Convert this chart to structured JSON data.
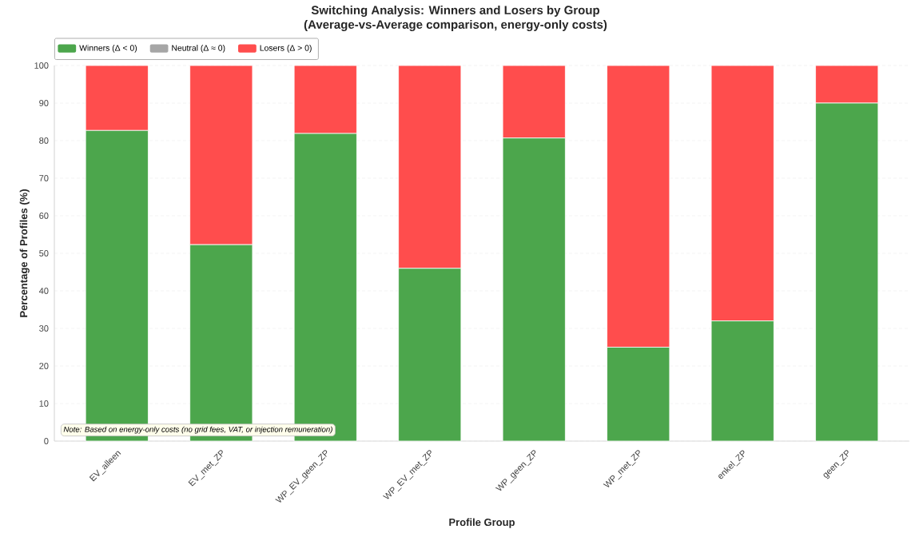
{
  "chart_data": {
    "type": "bar",
    "title": "Switching Analysis: Winners and Losers by Group",
    "subtitle": "(Average-vs-Average comparison, energy-only costs)",
    "xlabel": "Profile Group",
    "ylabel": "Percentage of Profiles (%)",
    "categories": [
      "EV_alleen",
      "EV_met_ZP",
      "WP_EV_geen_ZP",
      "WP_EV_met_ZP",
      "WP_geen_ZP",
      "WP_met_ZP",
      "enkel_ZP",
      "geen_ZP"
    ],
    "stacked": true,
    "series": [
      {
        "name": "Winners (Δ < 0)",
        "color": "#4ca64c",
        "values": [
          82.7,
          52.3,
          81.9,
          46,
          80.7,
          25,
          32,
          90
        ]
      },
      {
        "name": "Neutral (Δ ≈ 0)",
        "color": "#a6a6a6",
        "values": [
          0,
          0,
          0,
          0,
          0,
          0,
          0,
          0
        ]
      },
      {
        "name": "Losers (Δ > 0)",
        "color": "#ff4d4d",
        "values": [
          17.3,
          47.7,
          18.1,
          54,
          19.3,
          75,
          68,
          10
        ]
      }
    ],
    "ylim": [
      0,
      100
    ],
    "yticks": [
      0,
      10,
      20,
      30,
      40,
      50,
      60,
      70,
      80,
      90,
      100
    ],
    "grid": "y",
    "legend": "top left",
    "annotations": [
      "Note: Based on energy-only costs (no grid fees, VAT, or injection remuneration)"
    ]
  }
}
